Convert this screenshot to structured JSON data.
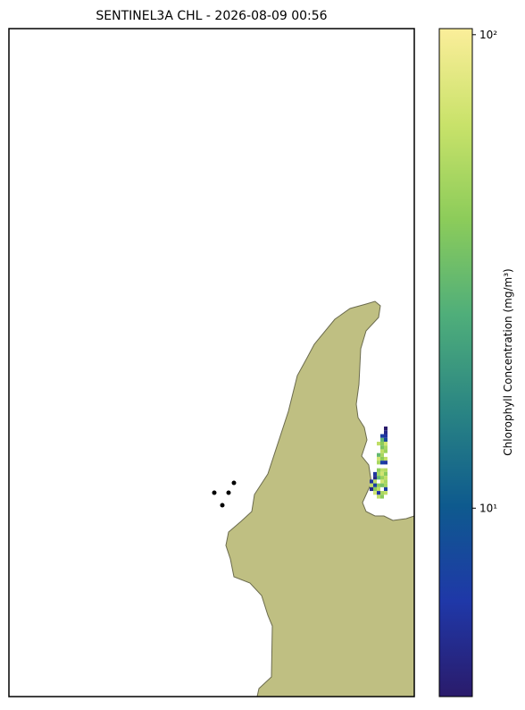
{
  "chart_data": {
    "type": "raster-map",
    "title": "SENTINEL3A CHL - 2026-08-09 00:56",
    "colorbar_label": "Chlorophyll Concentration (mg/m³)",
    "log_scale": true,
    "clim": [
      4,
      103
    ],
    "cticks": [
      {
        "value": 10,
        "label": "10¹"
      },
      {
        "value": 100,
        "label": "10²"
      }
    ],
    "colormap": [
      "#2a1b6b",
      "#1f38a8",
      "#0e5a8e",
      "#2a8583",
      "#4fae7a",
      "#8ccc5a",
      "#c9e26a",
      "#fbee9a"
    ],
    "grid": [
      [
        null,
        null,
        null,
        null,
        null,
        4
      ],
      [
        null,
        null,
        null,
        null,
        null,
        5
      ],
      [
        null,
        null,
        null,
        null,
        7,
        6
      ],
      [
        null,
        null,
        null,
        null,
        30,
        8
      ],
      [
        null,
        null,
        null,
        60,
        40,
        70
      ],
      [
        null,
        null,
        null,
        null,
        35,
        50
      ],
      [
        null,
        null,
        null,
        null,
        60,
        45
      ],
      [
        null,
        null,
        null,
        30,
        50,
        null
      ],
      [
        null,
        null,
        null,
        70,
        40,
        60
      ],
      [
        null,
        null,
        null,
        50,
        7,
        6
      ],
      [
        null,
        null,
        null,
        null,
        null,
        null
      ],
      [
        null,
        null,
        null,
        40,
        60,
        55
      ],
      [
        null,
        null,
        6,
        50,
        70,
        40
      ],
      [
        null,
        null,
        5,
        30,
        45,
        60
      ],
      [
        null,
        6,
        60,
        null,
        70,
        50
      ],
      [
        null,
        60,
        7,
        40,
        35,
        50
      ],
      [
        null,
        5,
        40,
        60,
        null,
        7
      ],
      [
        null,
        null,
        70,
        6,
        50,
        60
      ],
      [
        null,
        null,
        null,
        60,
        40,
        null
      ]
    ]
  }
}
